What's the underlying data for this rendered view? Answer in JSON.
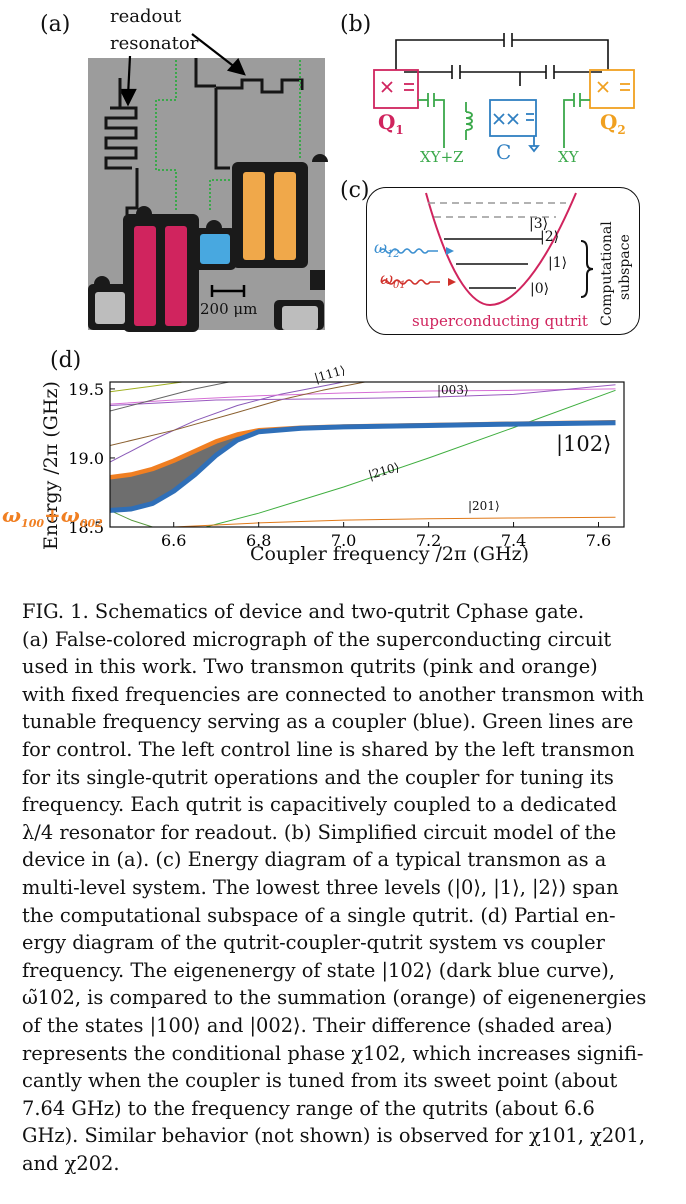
{
  "panel_a": {
    "label": "(a)",
    "annotation_line1": "readout",
    "annotation_line2": "resonator",
    "scale_bar": "200 μm"
  },
  "panel_b": {
    "label": "(b)",
    "q1": "Q",
    "q1_sub": "1",
    "q2": "Q",
    "q2_sub": "2",
    "coupler": "C",
    "xyz": "XY+Z",
    "xy": "XY",
    "colors": {
      "q1": "#d0245e",
      "q2": "#f0a020",
      "coupler": "#2f7fc1",
      "control": "#3aa84a"
    }
  },
  "panel_c": {
    "label": "(c)",
    "levels": [
      "|0⟩",
      "|1⟩",
      "|2⟩",
      "|3⟩"
    ],
    "omega12": "ω",
    "omega12_sub": "12",
    "omega01": "ω",
    "omega01_sub": "01",
    "subspace_line1": "Computational",
    "subspace_line2": "subspace",
    "title": "superconducting qutrit"
  },
  "panel_d": {
    "label": "(d)",
    "state_labels": {
      "s111": "|111⟩",
      "s003": "|003⟩",
      "s102": "|102⟩",
      "s210": "|210⟩",
      "s201": "|201⟩"
    },
    "orange_label": {
      "w1": "ω",
      "s1": "100",
      "plus": "+",
      "w2": "ω",
      "s2": "002"
    }
  },
  "chart_data": {
    "type": "line",
    "xlabel": "Coupler frequency /2π (GHz)",
    "ylabel": "Energy /2π (GHz)",
    "xlim": [
      6.45,
      7.66
    ],
    "ylim": [
      18.5,
      19.55
    ],
    "xticks": [
      "6.6",
      "6.8",
      "7.0",
      "7.2",
      "7.4",
      "7.6"
    ],
    "yticks": [
      "18.5",
      "19.0",
      "19.5"
    ],
    "grid": false,
    "series": [
      {
        "name": "|102⟩",
        "color": "#2f6fb8",
        "x": [
          6.45,
          6.5,
          6.55,
          6.6,
          6.65,
          6.7,
          6.75,
          6.8,
          6.9,
          7.0,
          7.2,
          7.4,
          7.64
        ],
        "y": [
          18.62,
          18.63,
          18.67,
          18.76,
          18.88,
          19.02,
          19.13,
          19.19,
          19.215,
          19.225,
          19.235,
          19.245,
          19.255
        ]
      },
      {
        "name": "ω100+ω002",
        "color": "#f07f22",
        "x": [
          6.45,
          6.5,
          6.55,
          6.6,
          6.65,
          6.7,
          6.75,
          6.8,
          6.9,
          7.0,
          7.2,
          7.4,
          7.64
        ],
        "y": [
          18.86,
          18.88,
          18.92,
          18.98,
          19.05,
          19.12,
          19.17,
          19.2,
          19.218,
          19.228,
          19.238,
          19.248,
          19.258
        ]
      },
      {
        "name": "|210⟩",
        "color": "#3fae3f",
        "x": [
          6.45,
          6.6,
          6.8,
          7.0,
          7.2,
          7.4,
          7.64
        ],
        "y": [
          18.36,
          18.44,
          18.6,
          18.79,
          19.0,
          19.22,
          19.49
        ]
      },
      {
        "name": "|201⟩",
        "color": "#e07a1a",
        "x": [
          6.45,
          6.6,
          6.8,
          7.0,
          7.2,
          7.4,
          7.64
        ],
        "y": [
          18.47,
          18.5,
          18.53,
          18.55,
          18.56,
          18.565,
          18.57
        ]
      },
      {
        "name": "|111⟩",
        "color": "#8a5ab8",
        "x": [
          6.45,
          6.55,
          6.65,
          6.75,
          6.85,
          6.95,
          7.0
        ],
        "y": [
          18.97,
          19.13,
          19.27,
          19.38,
          19.46,
          19.52,
          19.55
        ]
      },
      {
        "name": "|003⟩",
        "color": "#d66fd6",
        "x": [
          6.45,
          6.6,
          6.8,
          7.0,
          7.2,
          7.4,
          7.64
        ],
        "y": [
          19.39,
          19.42,
          19.45,
          19.47,
          19.485,
          19.49,
          19.5
        ]
      },
      {
        "color": "#8a6030",
        "x": [
          6.45,
          6.6,
          6.75,
          6.85,
          6.95,
          7.05
        ],
        "y": [
          19.09,
          19.2,
          19.33,
          19.42,
          19.49,
          19.55
        ]
      },
      {
        "color": "#9a5ac0",
        "x": [
          6.45,
          6.7,
          7.0,
          7.2,
          7.4,
          7.64
        ],
        "y": [
          19.38,
          19.42,
          19.43,
          19.44,
          19.46,
          19.53
        ]
      },
      {
        "color": "#666666",
        "x": [
          6.45,
          6.55,
          6.65,
          6.73
        ],
        "y": [
          19.34,
          19.42,
          19.5,
          19.55
        ]
      },
      {
        "color": "#a0b020",
        "x": [
          6.45,
          6.55,
          6.62
        ],
        "y": [
          19.48,
          19.52,
          19.55
        ]
      },
      {
        "color": "#5a9a40",
        "x": [
          6.45,
          6.5,
          6.55
        ],
        "y": [
          18.62,
          18.55,
          18.5
        ]
      }
    ]
  },
  "caption": {
    "lines": [
      "FIG. 1.   Schematics of device and two-qutrit Cphase gate.",
      "(a) False-colored micrograph of the superconducting circuit",
      "used in this work.  Two transmon qutrits (pink and orange)",
      "with fixed frequencies are connected to another transmon with",
      "tunable frequency serving as a coupler (blue).  Green lines are",
      "for control.  The left control line is shared by the left transmon",
      "for its single-qutrit operations and the coupler for tuning its",
      "frequency.  Each qutrit is capacitively coupled to a dedicated",
      "λ/4 resonator for readout.  (b) Simplified circuit model of the",
      "device in (a).  (c) Energy diagram of a typical transmon as a",
      "multi-level system.  The lowest three levels (|0⟩, |1⟩, |2⟩) span",
      "the computational subspace of a single qutrit.  (d) Partial en-",
      "ergy diagram of the qutrit-coupler-qutrit system vs coupler",
      "frequency.  The eigenenergy of state |102⟩ (dark blue curve),",
      "ω̃102, is compared to the summation (orange) of eigenenergies",
      "of the states |100⟩ and |002⟩.  Their difference (shaded area)",
      "represents the conditional phase χ102, which increases signifi-",
      "cantly when the coupler is tuned from its sweet point (about",
      "7.64 GHz) to the frequency range of the qutrits (about 6.6",
      "GHz). Similar behavior (not shown) is observed for χ101, χ201,",
      "and χ202."
    ]
  }
}
